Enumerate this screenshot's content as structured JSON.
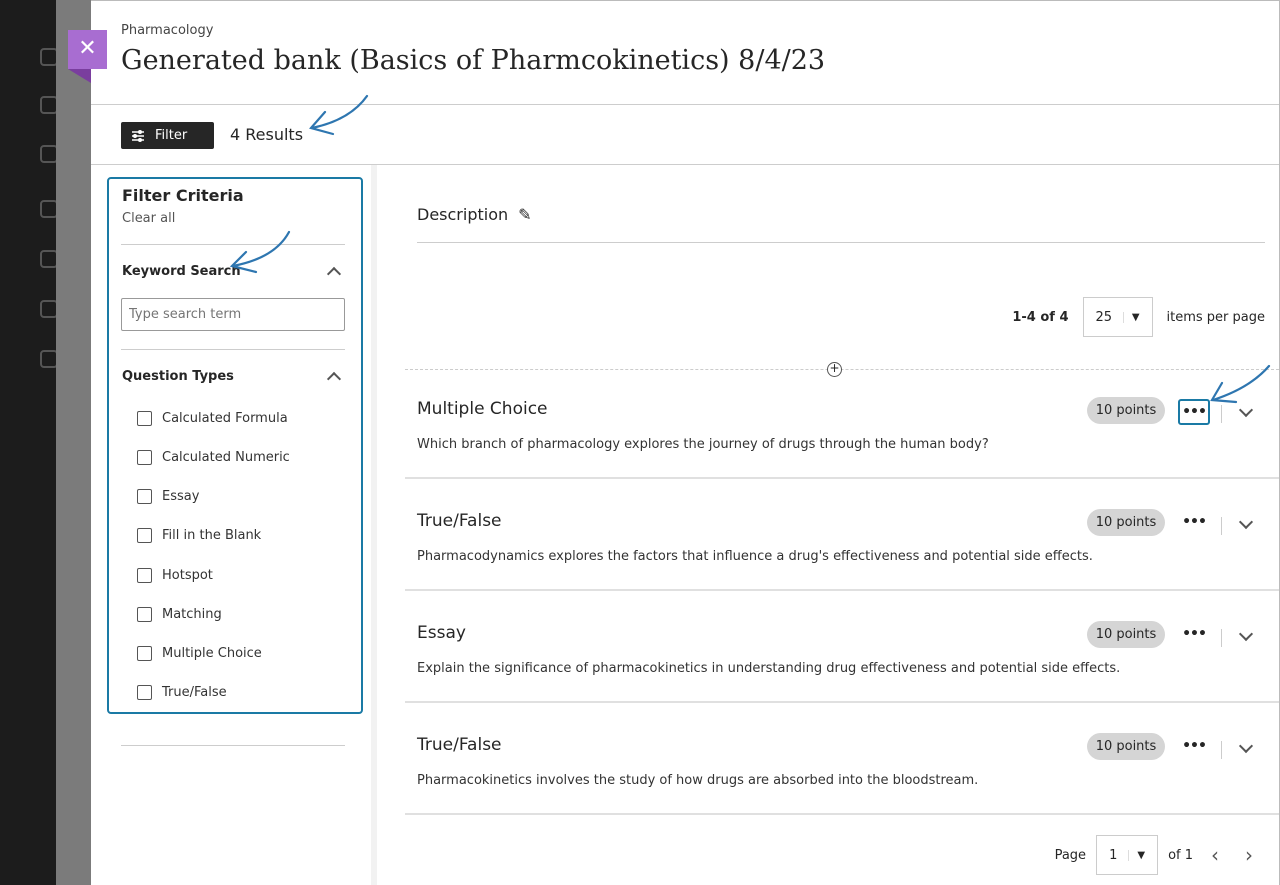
{
  "header": {
    "breadcrumb": "Pharmacology",
    "title": "Generated bank (Basics of Pharmcokinetics) 8/4/23",
    "close_icon": "close-icon"
  },
  "toolbar": {
    "filter_label": "Filter",
    "results": "4 Results"
  },
  "filters": {
    "heading": "Filter Criteria",
    "clear_all": "Clear all",
    "keyword_heading": "Keyword Search",
    "keyword_placeholder": "Type search term",
    "keyword_value": "",
    "types_heading": "Question Types",
    "types": [
      {
        "label": "Calculated Formula"
      },
      {
        "label": "Calculated Numeric"
      },
      {
        "label": "Essay"
      },
      {
        "label": "Fill in the Blank"
      },
      {
        "label": "Hotspot"
      },
      {
        "label": "Matching"
      },
      {
        "label": "Multiple Choice"
      },
      {
        "label": "True/False"
      }
    ]
  },
  "main": {
    "description_label": "Description",
    "range": "1-4 of 4",
    "per_page_value": "25",
    "per_page_label": "items per page",
    "questions": [
      {
        "type": "Multiple Choice",
        "points": "10 points",
        "text": "Which branch of pharmacology explores the journey of drugs through the human body?"
      },
      {
        "type": "True/False",
        "points": "10 points",
        "text": "Pharmacodynamics explores the factors that influence a drug's effectiveness and potential side effects."
      },
      {
        "type": "Essay",
        "points": "10 points",
        "text": "Explain the significance of pharmacokinetics in understanding drug effectiveness and potential side effects."
      },
      {
        "type": "True/False",
        "points": "10 points",
        "text": "Pharmacokinetics involves the study of how drugs are absorbed into the bloodstream."
      }
    ],
    "page_label": "Page",
    "page_value": "1",
    "page_total": "of 1"
  },
  "colors": {
    "accent": "#1a7aa5",
    "close_bg": "#a86dd1",
    "annotation": "#2e76b0"
  }
}
